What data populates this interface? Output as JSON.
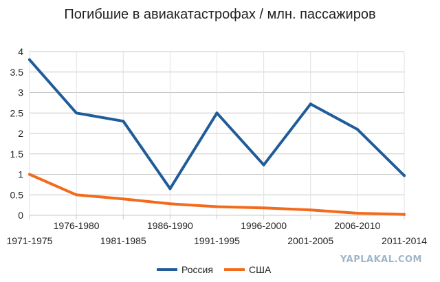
{
  "chart_data": {
    "type": "line",
    "title": "Погибшие в авиакатастрофах / млн. пассажиров",
    "categories": [
      "1971-1975",
      "1976-1980",
      "1981-1985",
      "1986-1990",
      "1991-1995",
      "1996-2000",
      "2001-2005",
      "2006-2010",
      "2011-2014"
    ],
    "ylim": [
      0,
      4
    ],
    "yticks": [
      "0",
      "0.5",
      "1",
      "1.5",
      "2",
      "2.5",
      "3",
      "3.5",
      "4"
    ],
    "grid": true,
    "legend_position": "bottom",
    "series": [
      {
        "name": "Россия",
        "color": "#1f5c99",
        "values": [
          3.8,
          2.5,
          2.3,
          0.65,
          2.5,
          1.23,
          2.72,
          2.1,
          0.97
        ]
      },
      {
        "name": "США",
        "color": "#f26b1d",
        "values": [
          1.0,
          0.5,
          0.4,
          0.28,
          0.21,
          0.18,
          0.13,
          0.05,
          0.02
        ]
      }
    ]
  },
  "watermark": "YAPLAKAL.COM"
}
